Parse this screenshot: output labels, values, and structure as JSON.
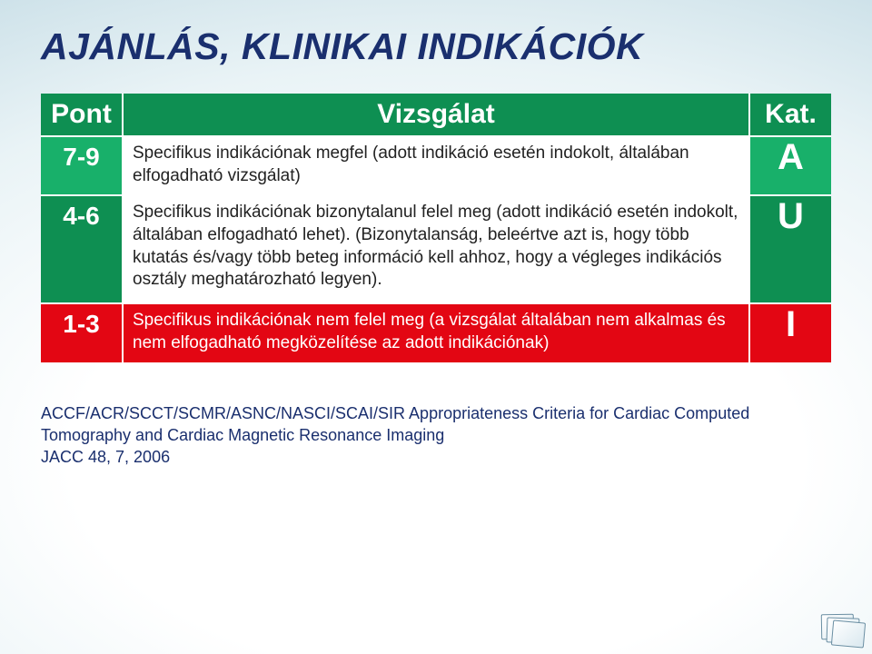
{
  "title": "AJÁNLÁS, KLINIKAI INDIKÁCIÓK",
  "header_bg": "#0e8f52",
  "columns": {
    "pont": "Pont",
    "vizsgalat": "Vizsgálat",
    "kat": "Kat."
  },
  "rows": [
    {
      "pont": "7-9",
      "text": "Specifikus indikációnak megfel (adott indikáció esetén indokolt, általában elfogadható vizsgálat)",
      "kat": "A",
      "bg": "#18b06a",
      "text_color": "#222222"
    },
    {
      "pont": "4-6",
      "text": "Specifikus indikációnak bizonytalanul felel meg (adott indikáció esetén indokolt, általában elfogadható lehet). (Bizonytalanság, beleértve azt is, hogy több kutatás és/vagy több beteg információ kell ahhoz, hogy a végleges indikációs osztály meghatározható legyen).",
      "kat": "U",
      "bg": "#0e8f52",
      "text_color": "#222222"
    },
    {
      "pont": "1-3",
      "text": "Specifikus indikációnak nem felel meg  (a vizsgálat általában nem alkalmas és nem elfogadható megközelítése az adott indikációnak)",
      "kat": "I",
      "bg": "#e30613",
      "text_color": "#ffffff"
    }
  ],
  "citation_line1": "ACCF/ACR/SCCT/SCMR/ASNC/NASCI/SCAI/SIR Appropriateness Criteria for Cardiac Computed Tomography and Cardiac Magnetic Resonance Imaging",
  "citation_line2": "JACC 48, 7, 2006"
}
